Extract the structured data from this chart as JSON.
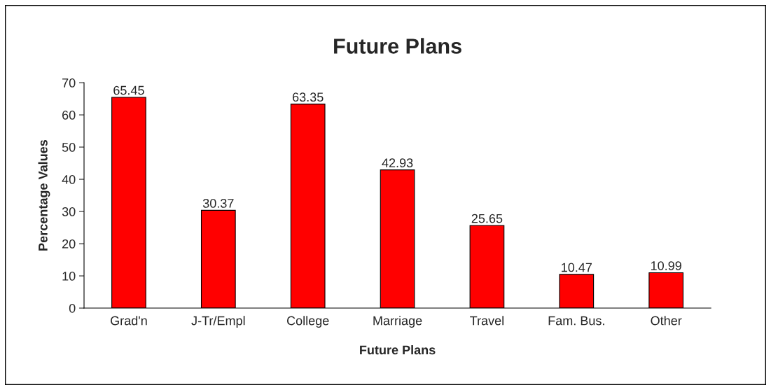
{
  "chart_data": {
    "type": "bar",
    "title": "Future Plans",
    "xlabel": "Future Plans",
    "ylabel": "Percentage Values",
    "categories": [
      "Grad'n",
      "J-Tr/Empl",
      "College",
      "Marriage",
      "Travel",
      "Fam. Bus.",
      "Other"
    ],
    "values": [
      65.45,
      30.37,
      63.35,
      42.93,
      25.65,
      10.47,
      10.99
    ],
    "color": "#ff0000",
    "ylim": [
      0,
      70
    ],
    "yticks": [
      0,
      10,
      20,
      30,
      40,
      50,
      60,
      70
    ],
    "grid": false,
    "data_labels": true
  }
}
